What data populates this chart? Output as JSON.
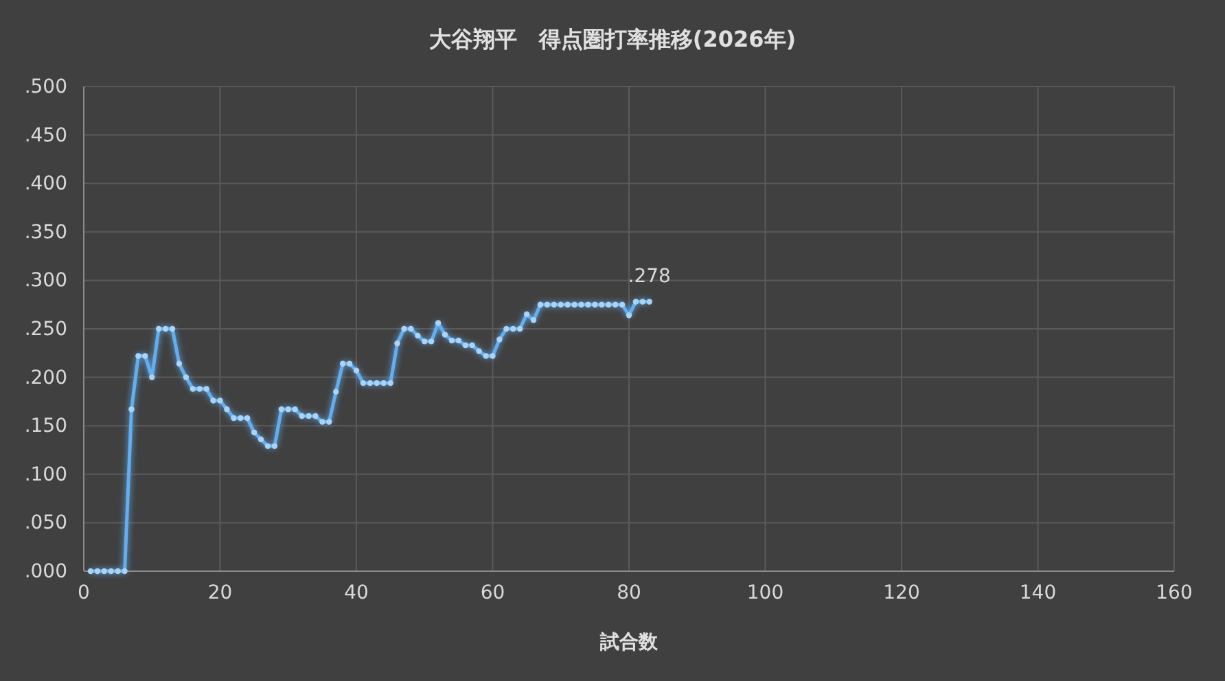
{
  "chart_data": {
    "type": "line",
    "title": "大谷翔平　得点圏打率推移(2026年)",
    "xlabel": "試合数",
    "x": [
      1,
      2,
      3,
      4,
      5,
      6,
      7,
      8,
      9,
      10,
      11,
      12,
      13,
      14,
      15,
      16,
      17,
      18,
      19,
      20,
      21,
      22,
      23,
      24,
      25,
      26,
      27,
      28,
      29,
      30,
      31,
      32,
      33,
      34,
      35,
      36,
      37,
      38,
      39,
      40,
      41,
      42,
      43,
      44,
      45,
      46,
      47,
      48,
      49,
      50,
      51,
      52,
      53,
      54,
      55,
      56,
      57,
      58,
      59,
      60,
      61,
      62,
      63,
      64,
      65,
      66,
      67,
      68,
      69,
      70,
      71,
      72,
      73,
      74,
      75,
      76,
      77,
      78,
      79,
      80,
      81,
      82,
      83
    ],
    "series": [
      {
        "color": "#62aef0",
        "values": [
          0,
          0,
          0,
          0,
          0,
          0,
          0.167,
          0.222,
          0.222,
          0.2,
          0.25,
          0.25,
          0.25,
          0.214,
          0.2,
          0.188,
          0.188,
          0.188,
          0.176,
          0.176,
          0.167,
          0.158,
          0.158,
          0.158,
          0.143,
          0.136,
          0.129,
          0.129,
          0.167,
          0.167,
          0.167,
          0.16,
          0.16,
          0.16,
          0.154,
          0.154,
          0.185,
          0.214,
          0.214,
          0.207,
          0.194,
          0.194,
          0.194,
          0.194,
          0.194,
          0.235,
          0.25,
          0.25,
          0.243,
          0.237,
          0.237,
          0.256,
          0.244,
          0.238,
          0.238,
          0.233,
          0.233,
          0.227,
          0.222,
          0.222,
          0.239,
          0.25,
          0.25,
          0.25,
          0.265,
          0.259,
          0.275,
          0.275,
          0.275,
          0.275,
          0.275,
          0.275,
          0.275,
          0.275,
          0.275,
          0.275,
          0.275,
          0.275,
          0.275,
          0.264,
          0.278,
          0.278,
          0.278
        ]
      }
    ],
    "annotations": [
      {
        "text": ".278",
        "x": 83,
        "y": 0.278
      }
    ],
    "xlim": [
      0,
      160
    ],
    "xticks": [
      0,
      20,
      40,
      60,
      80,
      100,
      120,
      140,
      160
    ],
    "ylim": [
      0,
      0.5
    ],
    "yticks": [
      {
        "value": 0,
        "label": ".000"
      },
      {
        "value": 0.05,
        "label": ".050"
      },
      {
        "value": 0.1,
        "label": ".100"
      },
      {
        "value": 0.15,
        "label": ".150"
      },
      {
        "value": 0.2,
        "label": ".200"
      },
      {
        "value": 0.25,
        "label": ".250"
      },
      {
        "value": 0.3,
        "label": ".300"
      },
      {
        "value": 0.35,
        "label": ".350"
      },
      {
        "value": 0.4,
        "label": ".400"
      },
      {
        "value": 0.45,
        "label": ".450"
      },
      {
        "value": 0.5,
        "label": ".500"
      }
    ],
    "grid": true,
    "marker": "circle",
    "line_style": "solid"
  }
}
